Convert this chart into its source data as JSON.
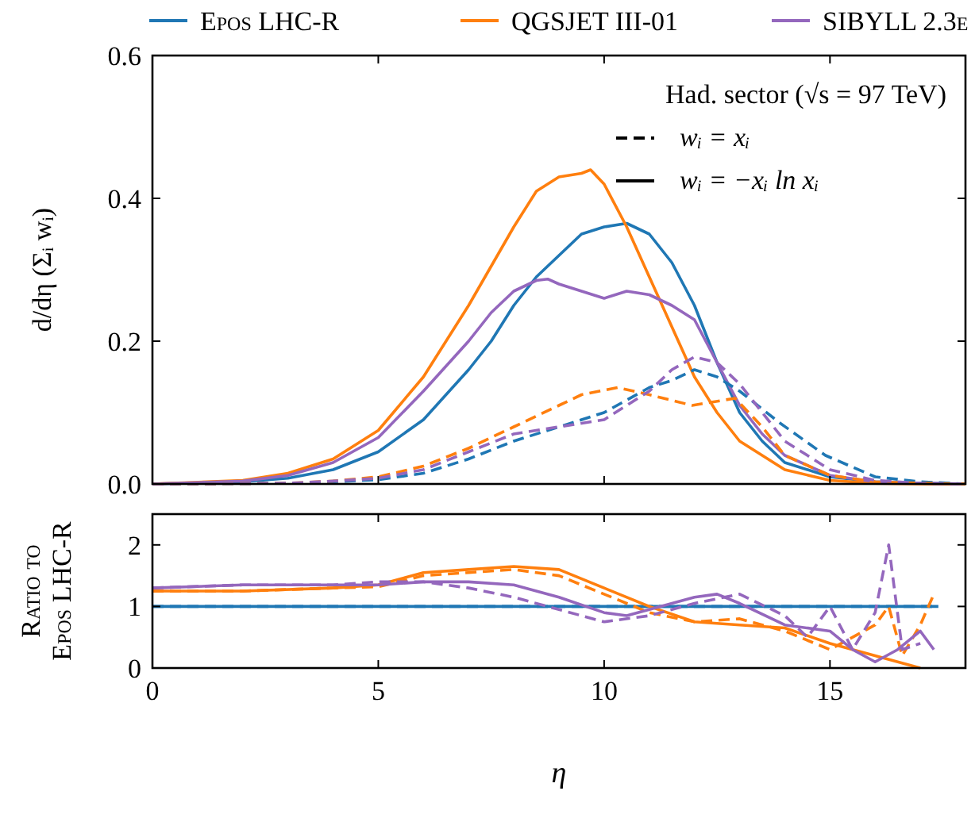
{
  "chart_data": [
    {
      "type": "line",
      "ylabel": "d/dη (Σᵢ wᵢ)",
      "annotations": [
        "Had. sector (√s = 97 TeV)",
        "wᵢ = xᵢ",
        "wᵢ = −xᵢ ln xᵢ"
      ],
      "legend": "top",
      "tick_labels": "y",
      "grid": false,
      "xlim": [
        0,
        18
      ],
      "xticks": [
        0,
        5,
        10,
        15
      ],
      "ylim": [
        0,
        0.6
      ],
      "yticks": [
        {
          "value": 0,
          "label": "0.0"
        },
        {
          "value": 0.2,
          "label": "0.2"
        },
        {
          "value": 0.4,
          "label": "0.4"
        },
        {
          "value": 0.6,
          "label": "0.6"
        }
      ],
      "series": [
        {
          "name": "Epos LHC-R",
          "color": "#1f77b4",
          "line_style": "solid",
          "x": [
            0,
            2,
            3,
            4,
            5,
            6,
            7,
            7.5,
            8,
            8.5,
            9,
            9.5,
            10,
            10.5,
            11,
            11.5,
            12,
            12.5,
            13,
            13.5,
            14,
            15,
            16,
            17,
            18
          ],
          "values": [
            0,
            0.003,
            0.008,
            0.02,
            0.045,
            0.09,
            0.16,
            0.2,
            0.25,
            0.29,
            0.32,
            0.35,
            0.36,
            0.365,
            0.35,
            0.31,
            0.25,
            0.17,
            0.1,
            0.06,
            0.03,
            0.01,
            0.003,
            0.001,
            0
          ]
        },
        {
          "name": "QGSJET III-01",
          "color": "#ff7f0e",
          "line_style": "solid",
          "x": [
            0,
            2,
            3,
            4,
            5,
            6,
            7,
            8,
            8.5,
            9,
            9.5,
            9.7,
            10,
            10.5,
            11,
            11.5,
            12,
            12.5,
            13,
            14,
            15,
            16,
            17,
            18
          ],
          "values": [
            0,
            0.005,
            0.015,
            0.035,
            0.075,
            0.15,
            0.25,
            0.36,
            0.41,
            0.43,
            0.435,
            0.44,
            0.42,
            0.36,
            0.29,
            0.22,
            0.15,
            0.1,
            0.06,
            0.02,
            0.005,
            0.001,
            0,
            0
          ]
        },
        {
          "name": "SIBYLL 2.3e",
          "color": "#9467bd",
          "line_style": "solid",
          "x": [
            0,
            2,
            3,
            4,
            5,
            6,
            7,
            7.5,
            8,
            8.5,
            8.75,
            9,
            9.5,
            10,
            10.5,
            11,
            11.5,
            12,
            12.5,
            13,
            13.5,
            14,
            15,
            16,
            17,
            18
          ],
          "values": [
            0,
            0.004,
            0.012,
            0.03,
            0.065,
            0.13,
            0.2,
            0.24,
            0.27,
            0.285,
            0.287,
            0.28,
            0.27,
            0.26,
            0.27,
            0.265,
            0.25,
            0.23,
            0.17,
            0.11,
            0.07,
            0.04,
            0.012,
            0.003,
            0.001,
            0
          ]
        },
        {
          "color": "#1f77b4",
          "line_style": "dashed",
          "x": [
            0,
            3,
            4,
            5,
            6,
            7,
            8,
            9,
            10,
            11,
            11.5,
            12,
            12.5,
            13,
            13.9,
            14.9,
            16,
            17,
            18
          ],
          "values": [
            0,
            0.001,
            0.003,
            0.006,
            0.015,
            0.035,
            0.06,
            0.08,
            0.1,
            0.135,
            0.145,
            0.16,
            0.15,
            0.13,
            0.085,
            0.04,
            0.01,
            0.003,
            0
          ]
        },
        {
          "color": "#ff7f0e",
          "line_style": "dashed",
          "x": [
            0,
            3,
            4,
            5,
            6,
            7,
            8,
            9,
            9.5,
            10.3,
            11,
            11.95,
            12.9,
            13.5,
            14,
            15,
            16,
            17,
            18
          ],
          "values": [
            0,
            0.001,
            0.004,
            0.01,
            0.025,
            0.05,
            0.08,
            0.11,
            0.125,
            0.135,
            0.125,
            0.11,
            0.12,
            0.08,
            0.04,
            0.012,
            0.003,
            0.001,
            0
          ]
        },
        {
          "color": "#9467bd",
          "line_style": "dashed",
          "x": [
            0,
            3,
            4,
            5,
            6,
            7,
            8,
            9,
            10,
            10.5,
            11,
            11.5,
            12,
            12.5,
            13,
            13.5,
            14,
            15,
            16,
            17,
            18
          ],
          "values": [
            0,
            0.001,
            0.004,
            0.008,
            0.02,
            0.045,
            0.07,
            0.08,
            0.09,
            0.11,
            0.13,
            0.16,
            0.178,
            0.17,
            0.14,
            0.1,
            0.06,
            0.02,
            0.005,
            0.001,
            0
          ]
        }
      ]
    },
    {
      "type": "line",
      "ylabel": "Ratio to Epos LHC-R",
      "xlabel": "η",
      "grid": false,
      "xlim": [
        0,
        18
      ],
      "xticks": [
        0,
        5,
        10,
        15
      ],
      "ylim": [
        0,
        2.5
      ],
      "yticks": [
        0,
        1,
        2
      ],
      "series": [
        {
          "color": "#1f77b4",
          "line_style": "solid",
          "x": [
            0,
            17.4
          ],
          "values": [
            1,
            1
          ]
        },
        {
          "color": "#1f77b4",
          "line_style": "dashed",
          "x": [
            0,
            17.4
          ],
          "values": [
            1,
            1
          ]
        },
        {
          "color": "#ff7f0e",
          "line_style": "solid",
          "x": [
            0,
            2,
            4,
            5,
            6,
            7,
            8,
            9,
            10,
            11,
            12,
            13,
            14,
            15,
            16,
            16.5,
            17
          ],
          "values": [
            1.25,
            1.25,
            1.3,
            1.35,
            1.55,
            1.6,
            1.65,
            1.6,
            1.3,
            1.0,
            0.75,
            0.7,
            0.65,
            0.4,
            0.2,
            0.1,
            0
          ]
        },
        {
          "color": "#ff7f0e",
          "line_style": "dashed",
          "x": [
            0,
            2,
            4,
            5,
            6,
            7,
            8,
            9,
            10,
            11,
            12,
            13,
            14,
            15,
            16,
            16.3,
            16.6,
            17,
            17.3
          ],
          "values": [
            1.25,
            1.25,
            1.3,
            1.32,
            1.5,
            1.55,
            1.6,
            1.5,
            1.2,
            0.9,
            0.75,
            0.8,
            0.6,
            0.3,
            0.7,
            1.0,
            0.2,
            0.7,
            1.2
          ]
        },
        {
          "color": "#9467bd",
          "line_style": "solid",
          "x": [
            0,
            2,
            4,
            5,
            6,
            7,
            8,
            9,
            10,
            10.5,
            11,
            12,
            12.5,
            13,
            14,
            15,
            15.5,
            16,
            16.5,
            17,
            17.3
          ],
          "values": [
            1.3,
            1.35,
            1.35,
            1.35,
            1.4,
            1.4,
            1.35,
            1.15,
            0.9,
            0.85,
            0.95,
            1.15,
            1.2,
            1.05,
            0.7,
            0.6,
            0.3,
            0.1,
            0.3,
            0.6,
            0.3
          ]
        },
        {
          "color": "#9467bd",
          "line_style": "dashed",
          "x": [
            0,
            2,
            4,
            5,
            6,
            7,
            8,
            9,
            10,
            11,
            12,
            13,
            14,
            14.5,
            15,
            15.5,
            16,
            16.3,
            16.6,
            17
          ],
          "values": [
            1.3,
            1.35,
            1.35,
            1.4,
            1.4,
            1.3,
            1.15,
            0.95,
            0.75,
            0.85,
            1.05,
            1.2,
            0.85,
            0.5,
            1.0,
            0.3,
            0.9,
            2.0,
            0.3,
            0.4
          ]
        }
      ]
    }
  ]
}
